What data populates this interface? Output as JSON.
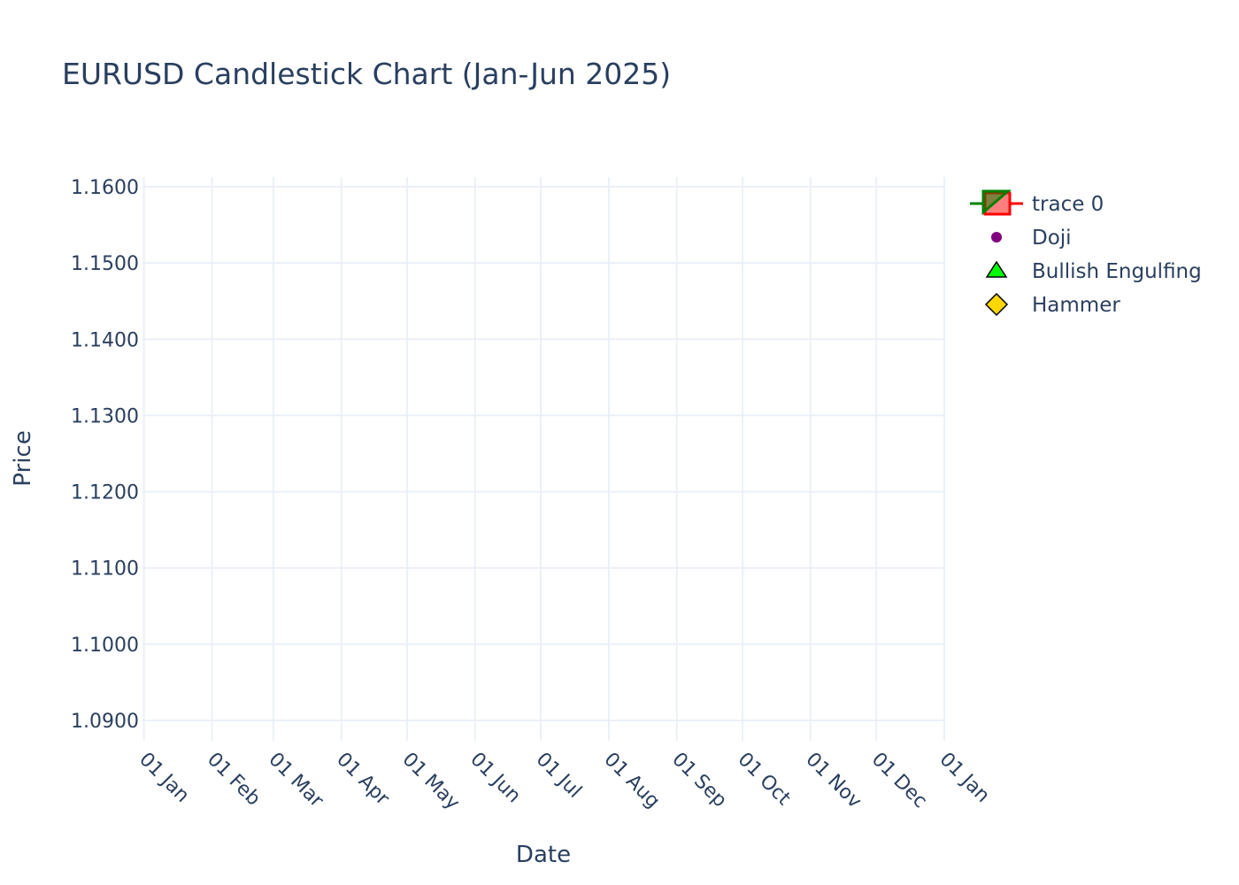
{
  "chart_data": {
    "type": "candlestick",
    "title": "EURUSD Candlestick Chart (Jan-Jun 2025)",
    "xlabel": "Date",
    "ylabel": "Price",
    "ylim": [
      1.0887,
      1.1612
    ],
    "y_ticks": [
      "1.0900",
      "1.1000",
      "1.1100",
      "1.1200",
      "1.1300",
      "1.1400",
      "1.1500",
      "1.1600"
    ],
    "y_tick_values": [
      1.09,
      1.1,
      1.11,
      1.12,
      1.13,
      1.14,
      1.15,
      1.16
    ],
    "x_ticks": [
      "01 Jan",
      "01 Feb",
      "01 Mar",
      "01 Apr",
      "01 May",
      "01 Jun",
      "01 Jul",
      "01 Aug",
      "01 Sep",
      "01 Oct",
      "01 Nov",
      "01 Dec",
      "01 Jan"
    ],
    "x_tick_dates": [
      "2025-01-01",
      "2025-02-01",
      "2025-03-01",
      "2025-04-01",
      "2025-05-01",
      "2025-06-01",
      "2025-07-01",
      "2025-08-01",
      "2025-09-01",
      "2025-10-01",
      "2025-11-01",
      "2025-12-01",
      "2026-01-01"
    ],
    "grid": true,
    "legend_position": "top-right",
    "series": [
      {
        "name": "trace 0",
        "kind": "candlestick",
        "increasing_color": "#008000",
        "decreasing_color": "#ff0000",
        "points": []
      },
      {
        "name": "Doji",
        "kind": "marker",
        "marker": "circle",
        "color": "#800080",
        "points": []
      },
      {
        "name": "Bullish Engulfing",
        "kind": "marker",
        "marker": "triangle-up",
        "color": "#00ff00",
        "points": []
      },
      {
        "name": "Hammer",
        "kind": "marker",
        "marker": "diamond",
        "color": "#ffd700",
        "points": []
      }
    ]
  }
}
